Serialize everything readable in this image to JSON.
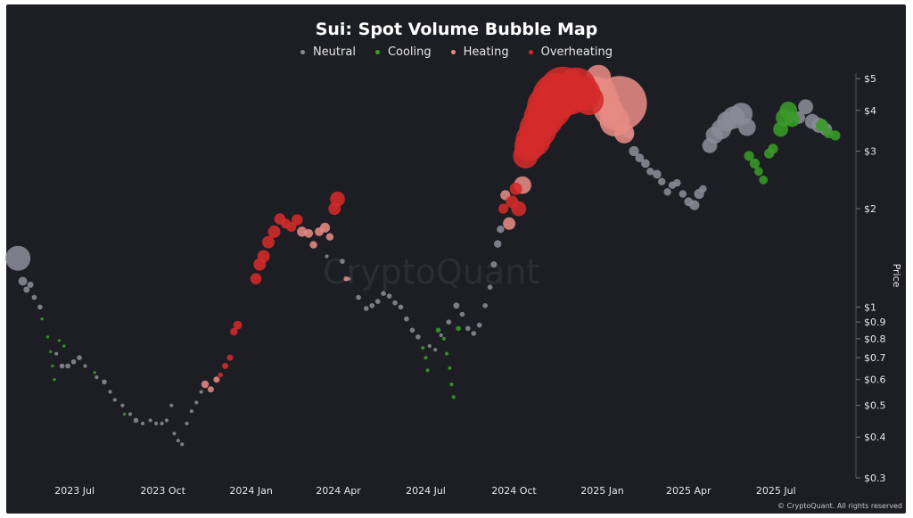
{
  "chart_data": {
    "type": "scatter",
    "title": "Sui: Spot Volume Bubble Map",
    "ylabel": "Price",
    "ylog": true,
    "ylim": [
      0.3,
      5.2
    ],
    "xlim": [
      "2023-05-01",
      "2025-09-15"
    ],
    "x_ticks": [
      {
        "date": "2023-07-01",
        "label": "2023 Jul"
      },
      {
        "date": "2023-10-01",
        "label": "2023 Oct"
      },
      {
        "date": "2024-01-01",
        "label": "2024 Jan"
      },
      {
        "date": "2024-04-01",
        "label": "2024 Apr"
      },
      {
        "date": "2024-07-01",
        "label": "2024 Jul"
      },
      {
        "date": "2024-10-01",
        "label": "2024 Oct"
      },
      {
        "date": "2025-01-01",
        "label": "2025 Jan"
      },
      {
        "date": "2025-04-01",
        "label": "2025 Apr"
      },
      {
        "date": "2025-07-01",
        "label": "2025 Jul"
      }
    ],
    "y_ticks": [
      {
        "value": 5,
        "label": "$5"
      },
      {
        "value": 4,
        "label": "$4"
      },
      {
        "value": 3,
        "label": "$3"
      },
      {
        "value": 2,
        "label": "$2"
      },
      {
        "value": 1,
        "label": "$1"
      },
      {
        "value": 0.9,
        "label": "$0.9"
      },
      {
        "value": 0.8,
        "label": "$0.8"
      },
      {
        "value": 0.7,
        "label": "$0.7"
      },
      {
        "value": 0.6,
        "label": "$0.6"
      },
      {
        "value": 0.5,
        "label": "$0.5"
      },
      {
        "value": 0.4,
        "label": "$0.4"
      },
      {
        "value": 0.3,
        "label": "$0.3"
      }
    ],
    "grid": false,
    "legend_position": "top-center",
    "series": [
      {
        "name": "Neutral",
        "color": "#8a8b96",
        "points": [
          [
            "2023-05-03",
            1.41,
            1.0
          ],
          [
            "2023-05-08",
            1.2,
            0.35
          ],
          [
            "2023-05-12",
            1.13,
            0.25
          ],
          [
            "2023-05-16",
            1.17,
            0.25
          ],
          [
            "2023-05-20",
            1.07,
            0.2
          ],
          [
            "2023-05-26",
            1.0,
            0.2
          ],
          [
            "2023-06-12",
            0.72,
            0.15
          ],
          [
            "2023-06-18",
            0.66,
            0.2
          ],
          [
            "2023-06-24",
            0.66,
            0.2
          ],
          [
            "2023-06-30",
            0.68,
            0.2
          ],
          [
            "2023-07-06",
            0.7,
            0.2
          ],
          [
            "2023-07-12",
            0.66,
            0.15
          ],
          [
            "2023-07-24",
            0.61,
            0.15
          ],
          [
            "2023-08-01",
            0.59,
            0.2
          ],
          [
            "2023-08-07",
            0.55,
            0.15
          ],
          [
            "2023-08-12",
            0.52,
            0.15
          ],
          [
            "2023-08-20",
            0.5,
            0.15
          ],
          [
            "2023-08-28",
            0.47,
            0.15
          ],
          [
            "2023-09-03",
            0.45,
            0.2
          ],
          [
            "2023-09-10",
            0.44,
            0.15
          ],
          [
            "2023-09-18",
            0.45,
            0.15
          ],
          [
            "2023-09-24",
            0.44,
            0.15
          ],
          [
            "2023-09-30",
            0.44,
            0.15
          ],
          [
            "2023-10-05",
            0.45,
            0.15
          ],
          [
            "2023-10-10",
            0.5,
            0.15
          ],
          [
            "2023-10-13",
            0.41,
            0.15
          ],
          [
            "2023-10-17",
            0.39,
            0.15
          ],
          [
            "2023-10-21",
            0.38,
            0.15
          ],
          [
            "2023-10-26",
            0.44,
            0.15
          ],
          [
            "2023-10-31",
            0.48,
            0.15
          ],
          [
            "2023-11-05",
            0.51,
            0.15
          ],
          [
            "2023-11-10",
            0.55,
            0.15
          ],
          [
            "2024-03-20",
            1.43,
            0.15
          ],
          [
            "2024-04-05",
            1.38,
            0.2
          ],
          [
            "2024-04-12",
            1.22,
            0.15
          ],
          [
            "2024-04-22",
            1.07,
            0.2
          ],
          [
            "2024-04-30",
            0.99,
            0.2
          ],
          [
            "2024-05-06",
            1.01,
            0.2
          ],
          [
            "2024-05-12",
            1.04,
            0.2
          ],
          [
            "2024-05-18",
            1.1,
            0.2
          ],
          [
            "2024-05-24",
            1.08,
            0.2
          ],
          [
            "2024-05-30",
            1.03,
            0.2
          ],
          [
            "2024-06-05",
            1.0,
            0.2
          ],
          [
            "2024-06-11",
            0.92,
            0.2
          ],
          [
            "2024-06-17",
            0.85,
            0.2
          ],
          [
            "2024-06-23",
            0.81,
            0.2
          ],
          [
            "2024-07-05",
            0.76,
            0.15
          ],
          [
            "2024-07-11",
            0.74,
            0.15
          ],
          [
            "2024-07-17",
            0.82,
            0.15
          ],
          [
            "2024-07-25",
            0.9,
            0.2
          ],
          [
            "2024-08-02",
            1.01,
            0.25
          ],
          [
            "2024-08-08",
            0.95,
            0.2
          ],
          [
            "2024-08-14",
            0.86,
            0.2
          ],
          [
            "2024-08-20",
            0.83,
            0.2
          ],
          [
            "2024-08-26",
            0.88,
            0.2
          ],
          [
            "2024-09-01",
            1.01,
            0.2
          ],
          [
            "2024-09-06",
            1.15,
            0.2
          ],
          [
            "2024-09-10",
            1.35,
            0.25
          ],
          [
            "2024-09-14",
            1.56,
            0.3
          ],
          [
            "2024-09-17",
            1.73,
            0.3
          ],
          [
            "2025-01-28",
            3.4,
            0.4
          ],
          [
            "2025-02-03",
            3.0,
            0.4
          ],
          [
            "2025-02-09",
            2.86,
            0.35
          ],
          [
            "2025-02-15",
            2.75,
            0.35
          ],
          [
            "2025-02-20",
            2.6,
            0.3
          ],
          [
            "2025-02-27",
            2.55,
            0.35
          ],
          [
            "2025-03-04",
            2.42,
            0.3
          ],
          [
            "2025-03-10",
            2.25,
            0.3
          ],
          [
            "2025-03-15",
            2.36,
            0.3
          ],
          [
            "2025-03-20",
            2.4,
            0.3
          ],
          [
            "2025-03-26",
            2.22,
            0.3
          ],
          [
            "2025-04-01",
            2.1,
            0.35
          ],
          [
            "2025-04-07",
            2.05,
            0.4
          ],
          [
            "2025-04-12",
            2.22,
            0.4
          ],
          [
            "2025-04-16",
            2.3,
            0.3
          ],
          [
            "2025-04-23",
            3.12,
            0.6
          ],
          [
            "2025-04-28",
            3.36,
            0.7
          ],
          [
            "2025-05-05",
            3.5,
            0.8
          ],
          [
            "2025-05-11",
            3.7,
            0.8
          ],
          [
            "2025-05-18",
            3.8,
            0.9
          ],
          [
            "2025-05-26",
            3.9,
            0.9
          ],
          [
            "2025-06-01",
            3.55,
            0.7
          ],
          [
            "2025-07-25",
            3.8,
            0.5
          ],
          [
            "2025-08-01",
            4.1,
            0.6
          ],
          [
            "2025-08-08",
            3.7,
            0.6
          ],
          [
            "2025-08-15",
            3.6,
            0.6
          ],
          [
            "2025-08-22",
            3.5,
            0.5
          ]
        ]
      },
      {
        "name": "Cooling",
        "color": "#3a9b2a",
        "points": [
          [
            "2023-05-28",
            0.92,
            0.12
          ],
          [
            "2023-06-03",
            0.81,
            0.12
          ],
          [
            "2023-06-06",
            0.73,
            0.12
          ],
          [
            "2023-06-08",
            0.66,
            0.12
          ],
          [
            "2023-06-10",
            0.6,
            0.12
          ],
          [
            "2023-06-15",
            0.79,
            0.12
          ],
          [
            "2023-06-20",
            0.76,
            0.12
          ],
          [
            "2023-07-22",
            0.63,
            0.12
          ],
          [
            "2023-08-22",
            0.47,
            0.12
          ],
          [
            "2024-06-28",
            0.75,
            0.15
          ],
          [
            "2024-07-01",
            0.7,
            0.15
          ],
          [
            "2024-07-03",
            0.64,
            0.15
          ],
          [
            "2024-07-14",
            0.85,
            0.2
          ],
          [
            "2024-07-20",
            0.8,
            0.15
          ],
          [
            "2024-07-23",
            0.72,
            0.15
          ],
          [
            "2024-07-26",
            0.65,
            0.15
          ],
          [
            "2024-07-28",
            0.58,
            0.15
          ],
          [
            "2024-07-30",
            0.53,
            0.15
          ],
          [
            "2024-08-04",
            0.86,
            0.2
          ],
          [
            "2025-06-03",
            2.9,
            0.4
          ],
          [
            "2025-06-09",
            2.75,
            0.4
          ],
          [
            "2025-06-13",
            2.6,
            0.35
          ],
          [
            "2025-06-18",
            2.45,
            0.35
          ],
          [
            "2025-06-24",
            2.95,
            0.4
          ],
          [
            "2025-06-28",
            3.05,
            0.4
          ],
          [
            "2025-07-06",
            3.5,
            0.6
          ],
          [
            "2025-07-10",
            3.8,
            0.7
          ],
          [
            "2025-07-14",
            4.0,
            0.7
          ],
          [
            "2025-07-18",
            3.75,
            0.6
          ],
          [
            "2025-08-18",
            3.6,
            0.5
          ],
          [
            "2025-08-25",
            3.4,
            0.4
          ],
          [
            "2025-09-01",
            3.35,
            0.4
          ]
        ]
      },
      {
        "name": "Heating",
        "color": "#e68b84",
        "points": [
          [
            "2023-11-14",
            0.58,
            0.3
          ],
          [
            "2023-11-20",
            0.56,
            0.25
          ],
          [
            "2023-11-26",
            0.6,
            0.25
          ],
          [
            "2024-02-23",
            1.7,
            0.4
          ],
          [
            "2024-03-01",
            1.68,
            0.35
          ],
          [
            "2024-03-06",
            1.55,
            0.3
          ],
          [
            "2024-03-12",
            1.7,
            0.35
          ],
          [
            "2024-03-18",
            1.75,
            0.4
          ],
          [
            "2024-03-23",
            1.64,
            0.3
          ],
          [
            "2024-04-09",
            1.22,
            0.2
          ],
          [
            "2024-09-22",
            2.2,
            0.4
          ],
          [
            "2024-09-26",
            1.8,
            0.5
          ],
          [
            "2024-10-10",
            2.36,
            0.7
          ],
          [
            "2024-12-25",
            4.7,
            0.9
          ],
          [
            "2024-12-28",
            5.05,
            1.0
          ],
          [
            "2025-01-02",
            4.6,
            1.0
          ],
          [
            "2025-01-06",
            4.3,
            1.0
          ],
          [
            "2025-01-10",
            4.0,
            1.0
          ],
          [
            "2025-01-14",
            3.7,
            1.2
          ],
          [
            "2025-01-19",
            4.2,
            2.2
          ],
          [
            "2025-01-24",
            3.4,
            0.8
          ]
        ]
      },
      {
        "name": "Overheating",
        "color": "#d42a2a",
        "points": [
          [
            "2023-11-30",
            0.62,
            0.2
          ],
          [
            "2023-12-05",
            0.66,
            0.25
          ],
          [
            "2023-12-10",
            0.7,
            0.25
          ],
          [
            "2023-12-14",
            0.84,
            0.3
          ],
          [
            "2023-12-18",
            0.88,
            0.35
          ],
          [
            "2024-01-06",
            1.22,
            0.45
          ],
          [
            "2024-01-10",
            1.35,
            0.5
          ],
          [
            "2024-01-14",
            1.43,
            0.5
          ],
          [
            "2024-01-19",
            1.58,
            0.5
          ],
          [
            "2024-01-25",
            1.7,
            0.5
          ],
          [
            "2024-01-31",
            1.86,
            0.45
          ],
          [
            "2024-02-06",
            1.8,
            0.4
          ],
          [
            "2024-02-12",
            1.76,
            0.4
          ],
          [
            "2024-02-18",
            1.85,
            0.45
          ],
          [
            "2024-03-28",
            2.0,
            0.5
          ],
          [
            "2024-03-31",
            2.14,
            0.6
          ],
          [
            "2024-09-20",
            2.0,
            0.4
          ],
          [
            "2024-09-29",
            2.1,
            0.5
          ],
          [
            "2024-10-03",
            2.3,
            0.5
          ],
          [
            "2024-10-06",
            2.0,
            0.6
          ],
          [
            "2024-10-13",
            2.9,
            1.0
          ],
          [
            "2024-10-17",
            3.1,
            1.2
          ],
          [
            "2024-10-21",
            3.25,
            1.4
          ],
          [
            "2024-10-26",
            3.5,
            1.5
          ],
          [
            "2024-11-01",
            3.8,
            1.6
          ],
          [
            "2024-11-07",
            4.1,
            1.8
          ],
          [
            "2024-11-14",
            4.4,
            1.9
          ],
          [
            "2024-11-21",
            4.6,
            1.9
          ],
          [
            "2024-11-28",
            4.5,
            1.7
          ],
          [
            "2024-12-05",
            4.7,
            1.6
          ],
          [
            "2024-12-12",
            4.5,
            1.4
          ],
          [
            "2024-12-18",
            4.3,
            1.2
          ]
        ]
      }
    ]
  },
  "footer": {
    "credit": "© CryptoQuant. All rights reserved"
  },
  "watermark": "CryptoQuant"
}
